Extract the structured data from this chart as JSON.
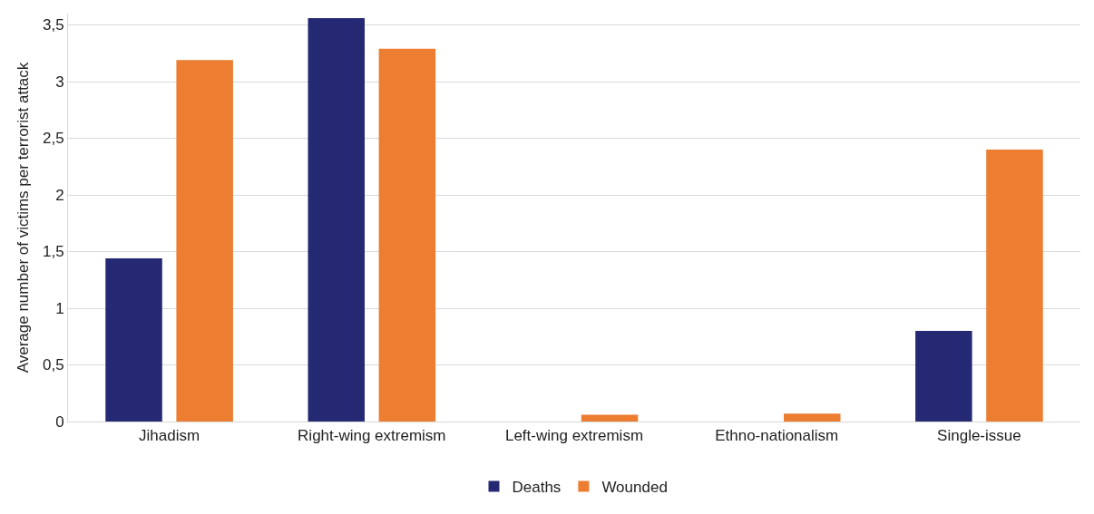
{
  "chart_data": {
    "type": "bar",
    "ylabel": "Average number of victims per terrorist attack",
    "categories": [
      "Jihadism",
      "Right-wing extremism",
      "Left-wing extremism",
      "Ethno-nationalism",
      "Single-issue"
    ],
    "series": [
      {
        "name": "Deaths",
        "color": "#252872",
        "values": [
          1.44,
          3.56,
          0,
          0,
          0.8
        ]
      },
      {
        "name": "Wounded",
        "color": "#ed7d31",
        "values": [
          3.19,
          3.29,
          0.06,
          0.07,
          2.4
        ]
      }
    ],
    "ylim": [
      0,
      3.6
    ],
    "yticks": [
      0,
      {
        "value": 0.5,
        "label": "0,5"
      },
      1,
      {
        "value": 1.5,
        "label": "1,5"
      },
      2,
      {
        "value": 2.5,
        "label": "2,5"
      },
      3,
      {
        "value": 3.5,
        "label": "3,5"
      }
    ],
    "grid": "y",
    "legend": "bottom"
  }
}
